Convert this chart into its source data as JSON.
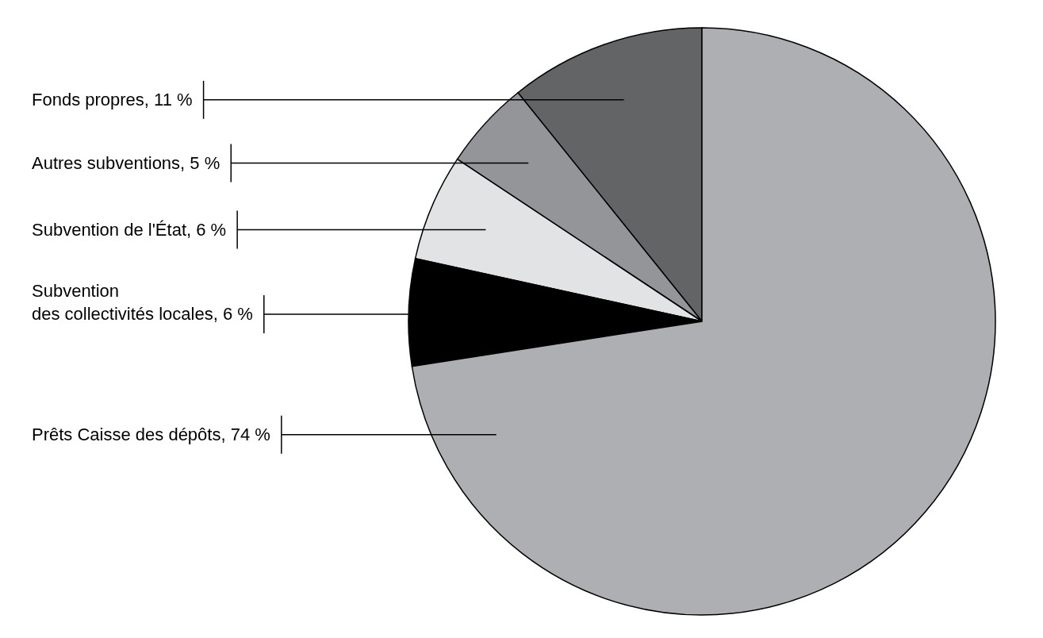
{
  "chart_data": {
    "type": "pie",
    "categories": [
      "Fonds propres",
      "Autres subventions",
      "Subvention de l'État",
      "Subvention des collectivités locales",
      "Prêts Caisse des dépôts"
    ],
    "values": [
      11,
      5,
      6,
      6,
      74
    ],
    "value_labels": [
      "11 %",
      "5 %",
      "6 %",
      "6 %",
      "74 %"
    ],
    "colors": [
      "#636466",
      "#939598",
      "#e2e3e4",
      "#000000",
      "#aeafb2"
    ],
    "legend": "left"
  }
}
